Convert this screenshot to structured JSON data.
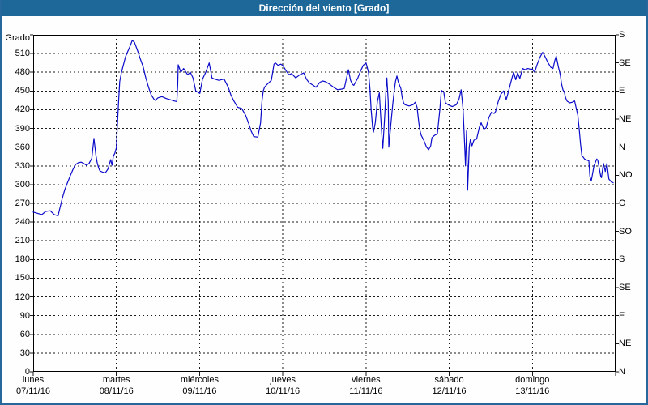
{
  "window": {
    "title": "Dirección del viento [Grado]"
  },
  "colors": {
    "titlebar_bg": "#1d6899",
    "window_border": "#26689b",
    "background": "#fdfefd",
    "line": "#0b0bcb",
    "grid": "#1a1a1a",
    "text": "#000000",
    "title_text": "#ffffff"
  },
  "chart_data": {
    "type": "line",
    "title": "Dirección del viento [Grado]",
    "ylabel": "Grado",
    "ylim": [
      0,
      540
    ],
    "xlim_days": [
      0,
      7
    ],
    "grid": "dashed",
    "legend": "none",
    "y_ticks_left": [
      0,
      30,
      60,
      90,
      120,
      150,
      180,
      210,
      240,
      270,
      300,
      330,
      360,
      390,
      420,
      450,
      480,
      510
    ],
    "y_ticks_right": [
      {
        "deg": 0,
        "label": "N"
      },
      {
        "deg": 45,
        "label": "NE"
      },
      {
        "deg": 90,
        "label": "E"
      },
      {
        "deg": 135,
        "label": "SE"
      },
      {
        "deg": 180,
        "label": "S"
      },
      {
        "deg": 225,
        "label": "SO"
      },
      {
        "deg": 270,
        "label": "O"
      },
      {
        "deg": 315,
        "label": "NO"
      },
      {
        "deg": 360,
        "label": "N"
      },
      {
        "deg": 405,
        "label": "NE"
      },
      {
        "deg": 450,
        "label": "E"
      },
      {
        "deg": 495,
        "label": "SE"
      },
      {
        "deg": 540,
        "label": "S"
      }
    ],
    "x_ticks": [
      {
        "weekday": "lunes",
        "date": "07/11/16"
      },
      {
        "weekday": "martes",
        "date": "08/11/16"
      },
      {
        "weekday": "miércoles",
        "date": "09/11/16"
      },
      {
        "weekday": "jueves",
        "date": "10/11/16"
      },
      {
        "weekday": "viernes",
        "date": "11/11/16"
      },
      {
        "weekday": "sábado",
        "date": "12/11/16"
      },
      {
        "weekday": "domingo",
        "date": "13/11/16"
      }
    ],
    "series": [
      {
        "name": "Dirección del viento",
        "unit": "Grado",
        "color": "#0b0bcb",
        "points": [
          [
            0.0,
            256
          ],
          [
            0.05,
            254
          ],
          [
            0.104,
            252
          ],
          [
            0.15,
            257
          ],
          [
            0.204,
            258
          ],
          [
            0.253,
            252
          ],
          [
            0.299,
            250
          ],
          [
            0.348,
            277
          ],
          [
            0.38,
            292
          ],
          [
            0.412,
            303
          ],
          [
            0.445,
            314
          ],
          [
            0.477,
            324
          ],
          [
            0.509,
            332
          ],
          [
            0.542,
            335
          ],
          [
            0.575,
            336
          ],
          [
            0.607,
            334
          ],
          [
            0.64,
            331
          ],
          [
            0.672,
            334
          ],
          [
            0.704,
            342
          ],
          [
            0.73,
            374
          ],
          [
            0.753,
            348
          ],
          [
            0.769,
            335
          ],
          [
            0.786,
            327
          ],
          [
            0.801,
            322
          ],
          [
            0.834,
            320
          ],
          [
            0.867,
            319
          ],
          [
            0.899,
            325
          ],
          [
            0.932,
            340
          ],
          [
            0.947,
            331
          ],
          [
            0.964,
            346
          ],
          [
            0.98,
            350
          ],
          [
            1.0,
            359
          ],
          [
            1.01,
            390
          ],
          [
            1.025,
            430
          ],
          [
            1.04,
            465
          ],
          [
            1.061,
            480
          ],
          [
            1.11,
            505
          ],
          [
            1.159,
            520
          ],
          [
            1.191,
            531
          ],
          [
            1.217,
            528
          ],
          [
            1.256,
            514
          ],
          [
            1.288,
            501
          ],
          [
            1.321,
            489
          ],
          [
            1.353,
            471
          ],
          [
            1.386,
            456
          ],
          [
            1.418,
            444
          ],
          [
            1.451,
            437
          ],
          [
            1.467,
            435
          ],
          [
            1.499,
            439
          ],
          [
            1.548,
            441
          ],
          [
            1.597,
            438
          ],
          [
            1.645,
            436
          ],
          [
            1.694,
            434
          ],
          [
            1.726,
            433
          ],
          [
            1.737,
            460
          ],
          [
            1.743,
            492
          ],
          [
            1.775,
            480
          ],
          [
            1.808,
            486
          ],
          [
            1.857,
            476
          ],
          [
            1.889,
            480
          ],
          [
            1.921,
            471
          ],
          [
            1.954,
            450
          ],
          [
            2.003,
            446
          ],
          [
            2.035,
            469
          ],
          [
            2.074,
            480
          ],
          [
            2.116,
            495
          ],
          [
            2.149,
            471
          ],
          [
            2.181,
            469
          ],
          [
            2.23,
            467
          ],
          [
            2.295,
            469
          ],
          [
            2.344,
            456
          ],
          [
            2.376,
            444
          ],
          [
            2.408,
            435
          ],
          [
            2.457,
            424
          ],
          [
            2.506,
            422
          ],
          [
            2.554,
            411
          ],
          [
            2.587,
            399
          ],
          [
            2.619,
            386
          ],
          [
            2.651,
            377
          ],
          [
            2.7,
            376
          ],
          [
            2.733,
            399
          ],
          [
            2.749,
            433
          ],
          [
            2.765,
            450
          ],
          [
            2.781,
            456
          ],
          [
            2.814,
            461
          ],
          [
            2.862,
            467
          ],
          [
            2.894,
            493
          ],
          [
            2.911,
            495
          ],
          [
            2.943,
            491
          ],
          [
            2.976,
            493
          ],
          [
            3.0,
            491
          ],
          [
            3.041,
            482
          ],
          [
            3.074,
            476
          ],
          [
            3.106,
            478
          ],
          [
            3.155,
            471
          ],
          [
            3.204,
            476
          ],
          [
            3.252,
            479
          ],
          [
            3.284,
            469
          ],
          [
            3.318,
            463
          ],
          [
            3.366,
            459
          ],
          [
            3.398,
            456
          ],
          [
            3.447,
            464
          ],
          [
            3.479,
            466
          ],
          [
            3.512,
            465
          ],
          [
            3.561,
            461
          ],
          [
            3.61,
            456
          ],
          [
            3.658,
            452
          ],
          [
            3.707,
            453
          ],
          [
            3.739,
            454
          ],
          [
            3.788,
            484
          ],
          [
            3.814,
            467
          ],
          [
            3.836,
            461
          ],
          [
            3.853,
            459
          ],
          [
            3.902,
            471
          ],
          [
            3.934,
            482
          ],
          [
            3.966,
            491
          ],
          [
            4.0,
            495
          ],
          [
            4.03,
            480
          ],
          [
            4.047,
            454
          ],
          [
            4.062,
            420
          ],
          [
            4.079,
            392
          ],
          [
            4.089,
            384
          ],
          [
            4.111,
            399
          ],
          [
            4.137,
            433
          ],
          [
            4.16,
            447
          ],
          [
            4.176,
            411
          ],
          [
            4.193,
            373
          ],
          [
            4.202,
            358
          ],
          [
            4.225,
            411
          ],
          [
            4.241,
            454
          ],
          [
            4.251,
            471
          ],
          [
            4.267,
            433
          ],
          [
            4.274,
            360
          ],
          [
            4.3,
            399
          ],
          [
            4.322,
            429
          ],
          [
            4.339,
            450
          ],
          [
            4.354,
            465
          ],
          [
            4.371,
            474
          ],
          [
            4.387,
            465
          ],
          [
            4.419,
            454
          ],
          [
            4.436,
            439
          ],
          [
            4.452,
            431
          ],
          [
            4.468,
            428
          ],
          [
            4.517,
            426
          ],
          [
            4.565,
            428
          ],
          [
            4.592,
            432
          ],
          [
            4.614,
            424
          ],
          [
            4.631,
            403
          ],
          [
            4.646,
            388
          ],
          [
            4.663,
            379
          ],
          [
            4.695,
            371
          ],
          [
            4.728,
            360
          ],
          [
            4.753,
            356
          ],
          [
            4.777,
            362
          ],
          [
            4.792,
            375
          ],
          [
            4.825,
            379
          ],
          [
            4.857,
            381
          ],
          [
            4.887,
            420
          ],
          [
            4.906,
            451
          ],
          [
            4.935,
            448
          ],
          [
            4.955,
            431
          ],
          [
            4.987,
            428
          ],
          [
            5.036,
            425
          ],
          [
            5.085,
            428
          ],
          [
            5.118,
            437
          ],
          [
            5.143,
            452
          ],
          [
            5.167,
            420
          ],
          [
            5.182,
            373
          ],
          [
            5.196,
            330
          ],
          [
            5.209,
            386
          ],
          [
            5.221,
            291
          ],
          [
            5.241,
            360
          ],
          [
            5.255,
            373
          ],
          [
            5.274,
            362
          ],
          [
            5.296,
            371
          ],
          [
            5.329,
            373
          ],
          [
            5.362,
            392
          ],
          [
            5.384,
            399
          ],
          [
            5.416,
            389
          ],
          [
            5.443,
            391
          ],
          [
            5.475,
            407
          ],
          [
            5.508,
            416
          ],
          [
            5.54,
            414
          ],
          [
            5.557,
            417
          ],
          [
            5.589,
            433
          ],
          [
            5.621,
            445
          ],
          [
            5.654,
            450
          ],
          [
            5.686,
            436
          ],
          [
            5.718,
            452
          ],
          [
            5.751,
            469
          ],
          [
            5.774,
            480
          ],
          [
            5.8,
            468
          ],
          [
            5.822,
            479
          ],
          [
            5.849,
            470
          ],
          [
            5.881,
            486
          ],
          [
            5.913,
            484
          ],
          [
            5.946,
            486
          ],
          [
            5.978,
            485
          ],
          [
            6.0,
            485
          ],
          [
            6.026,
            480
          ],
          [
            6.059,
            493
          ],
          [
            6.091,
            504
          ],
          [
            6.124,
            512
          ],
          [
            6.156,
            504
          ],
          [
            6.189,
            495
          ],
          [
            6.221,
            488
          ],
          [
            6.247,
            486
          ],
          [
            6.27,
            499
          ],
          [
            6.286,
            506
          ],
          [
            6.312,
            489
          ],
          [
            6.335,
            476
          ],
          [
            6.351,
            461
          ],
          [
            6.367,
            452
          ],
          [
            6.384,
            448
          ],
          [
            6.399,
            439
          ],
          [
            6.416,
            434
          ],
          [
            6.448,
            431
          ],
          [
            6.481,
            432
          ],
          [
            6.507,
            434
          ],
          [
            6.546,
            411
          ],
          [
            6.562,
            390
          ],
          [
            6.579,
            364
          ],
          [
            6.594,
            347
          ],
          [
            6.627,
            341
          ],
          [
            6.659,
            339
          ],
          [
            6.679,
            338
          ],
          [
            6.691,
            313
          ],
          [
            6.708,
            306
          ],
          [
            6.74,
            330
          ],
          [
            6.773,
            341
          ],
          [
            6.786,
            339
          ],
          [
            6.822,
            313
          ],
          [
            6.83,
            311
          ],
          [
            6.854,
            334
          ],
          [
            6.876,
            321
          ],
          [
            6.896,
            334
          ],
          [
            6.919,
            309
          ],
          [
            6.951,
            304
          ],
          [
            6.971,
            303
          ]
        ]
      }
    ]
  }
}
